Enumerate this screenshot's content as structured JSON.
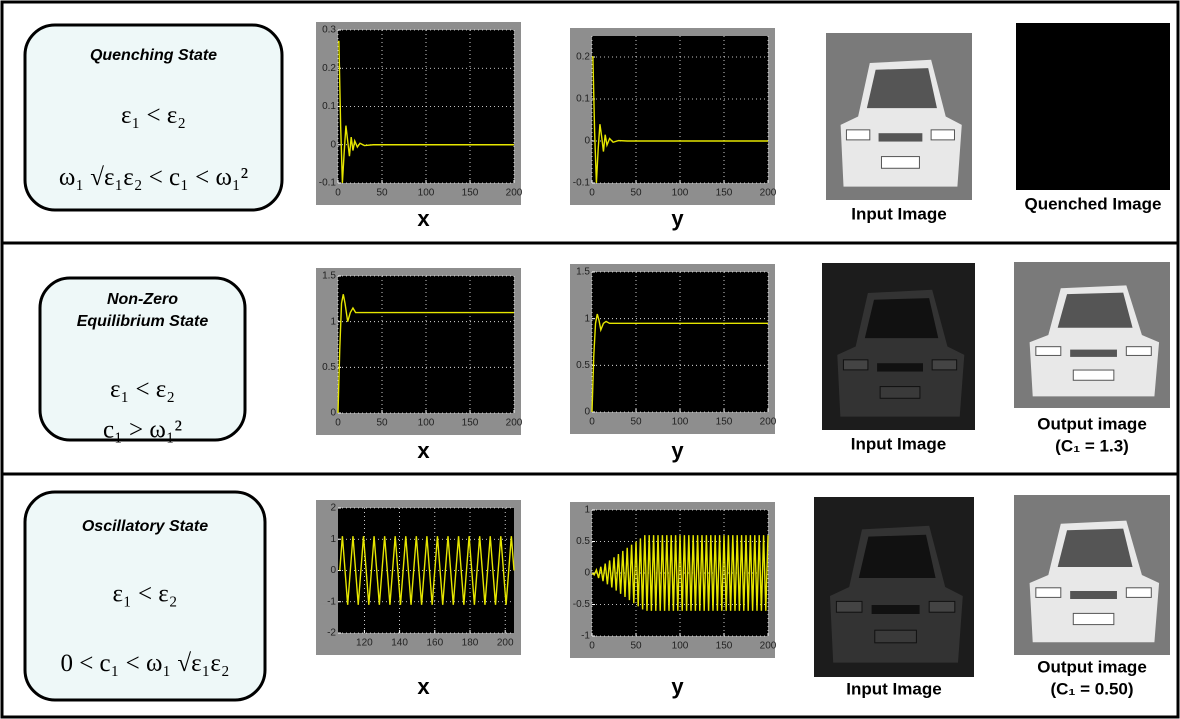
{
  "rows": [
    {
      "state": {
        "title": [
          "Quenching State"
        ],
        "conditions": [
          "ε₁ < ε₂",
          "ω₁ √ε₁ε₂ < c₁ < ω₁²"
        ]
      },
      "plots": [
        {
          "type": "line",
          "xlabel": "x",
          "color": "#e6e600",
          "grid": true,
          "xlim": [
            0,
            200
          ],
          "ylim": [
            -0.1,
            0.3
          ],
          "xticks": [
            0,
            50,
            100,
            150,
            200
          ],
          "yticks": [
            -0.1,
            0,
            0.1,
            0.2,
            0.3
          ],
          "x": [
            0,
            1,
            3,
            5,
            7,
            9,
            11,
            13,
            15,
            17,
            19,
            22,
            25,
            30,
            40,
            200
          ],
          "y": [
            0.27,
            0.27,
            0.05,
            -0.1,
            -0.02,
            0.05,
            0.01,
            -0.03,
            0.02,
            -0.015,
            0.01,
            -0.006,
            0.004,
            -0.002,
            0,
            0
          ]
        },
        {
          "type": "line",
          "xlabel": "y",
          "color": "#e6e600",
          "grid": true,
          "xlim": [
            0,
            200
          ],
          "ylim": [
            -0.1,
            0.25
          ],
          "xticks": [
            0,
            50,
            100,
            150,
            200
          ],
          "yticks": [
            -0.1,
            0,
            0.1,
            0.2
          ],
          "x": [
            0,
            1,
            3,
            5,
            7,
            9,
            11,
            13,
            15,
            17,
            20,
            24,
            30,
            40,
            200
          ],
          "y": [
            0.2,
            0.2,
            0.02,
            -0.1,
            -0.02,
            0.04,
            0.01,
            -0.025,
            0.015,
            -0.01,
            0.006,
            -0.003,
            0.001,
            0,
            0
          ]
        }
      ],
      "input_image": {
        "caption": "Input Image"
      },
      "output_image": {
        "caption": [
          "Quenched Image"
        ]
      }
    },
    {
      "state": {
        "title": [
          "Non-Zero",
          "Equilibrium State"
        ],
        "conditions": [
          "ε₁ < ε₂",
          "c₁ > ω₁²"
        ]
      },
      "plots": [
        {
          "type": "line",
          "xlabel": "x",
          "color": "#e6e600",
          "grid": true,
          "xlim": [
            0,
            200
          ],
          "ylim": [
            0,
            1.5
          ],
          "xticks": [
            0,
            50,
            100,
            150,
            200
          ],
          "yticks": [
            0,
            0.5,
            1,
            1.5
          ],
          "x": [
            0,
            2,
            4,
            6,
            8,
            11,
            14,
            17,
            20,
            25,
            200
          ],
          "y": [
            0,
            0.7,
            1.2,
            1.3,
            1.2,
            1.0,
            1.1,
            1.15,
            1.1,
            1.1,
            1.1
          ]
        },
        {
          "type": "line",
          "xlabel": "y",
          "color": "#e6e600",
          "grid": true,
          "xlim": [
            0,
            200
          ],
          "ylim": [
            0,
            1.5
          ],
          "xticks": [
            0,
            50,
            100,
            150,
            200
          ],
          "yticks": [
            0,
            0.5,
            1,
            1.5
          ],
          "x": [
            0,
            2,
            4,
            6,
            8,
            10,
            13,
            16,
            20,
            200
          ],
          "y": [
            0,
            0.6,
            0.95,
            1.05,
            0.98,
            0.88,
            0.95,
            0.97,
            0.95,
            0.95
          ]
        }
      ],
      "input_image": {
        "caption": "Input Image"
      },
      "output_image": {
        "caption": [
          "Output image",
          "(C₁ = 1.3)"
        ]
      }
    },
    {
      "state": {
        "title": [
          "Oscillatory State"
        ],
        "conditions": [
          "ε₁ < ε₂",
          "0 < c₁ < ω₁ √ε₁ε₂"
        ]
      },
      "plots": [
        {
          "type": "line",
          "xlabel": "x",
          "color": "#e6e600",
          "grid": true,
          "xlim": [
            105,
            205
          ],
          "ylim": [
            -2,
            2
          ],
          "xticks": [
            120,
            140,
            160,
            180,
            200
          ],
          "yticks": [
            -2,
            -1,
            0,
            1,
            2
          ],
          "x": [
            106,
            107.5,
            109,
            110.5,
            112,
            113.5,
            115,
            116.5,
            118,
            119.5,
            121,
            122.5,
            124,
            125.5,
            127,
            128.5,
            130,
            131.5,
            133,
            134.5,
            136,
            137.5,
            139,
            140.5,
            142,
            143.5,
            145,
            146.5,
            148,
            149.5,
            151,
            152.5,
            154,
            155.5,
            157,
            158.5,
            160,
            161.5,
            163,
            164.5,
            166,
            167.5,
            169,
            170.5,
            172,
            173.5,
            175,
            176.5,
            178,
            179.5,
            181,
            182.5,
            184,
            185.5,
            187,
            188.5,
            190,
            191.5,
            193,
            194.5,
            196,
            197.5,
            199,
            200.5,
            202,
            203.5,
            205
          ],
          "y": [
            0,
            1.1,
            0,
            -1.1,
            0,
            1.1,
            0,
            -1.1,
            0,
            1.1,
            0,
            -1.1,
            0,
            1.1,
            0,
            -1.1,
            0,
            1.1,
            0,
            -1.1,
            0,
            1.1,
            0,
            -1.1,
            0,
            1.1,
            0,
            -1.1,
            0,
            1.1,
            0,
            -1.1,
            0,
            1.1,
            0,
            -1.1,
            0,
            1.1,
            0,
            -1.1,
            0,
            1.1,
            0,
            -1.1,
            0,
            1.1,
            0,
            -1.1,
            0,
            1.1,
            0,
            -1.1,
            0,
            1.1,
            0,
            -1.1,
            0,
            1.1,
            0,
            -1.1,
            0,
            1.1,
            0,
            -1.1,
            0,
            1.1,
            0
          ]
        },
        {
          "type": "line",
          "xlabel": "y",
          "color": "#e6e600",
          "grid": true,
          "xlim": [
            0,
            200
          ],
          "ylim": [
            -1,
            1
          ],
          "xticks": [
            0,
            50,
            100,
            150,
            200
          ],
          "yticks": [
            -1,
            -0.5,
            0,
            0.5,
            1
          ],
          "x": [
            0,
            2.5,
            5,
            7.5,
            10,
            12.5,
            15,
            17.5,
            20,
            22.5,
            25,
            27.5,
            30,
            32.5,
            35,
            37.5,
            40,
            42.5,
            45,
            47.5,
            50,
            52.5,
            55,
            57.5,
            60,
            62.5,
            65,
            67.5,
            70,
            72.5,
            75,
            77.5,
            80,
            82.5,
            85,
            87.5,
            90,
            92.5,
            95,
            97.5,
            100,
            102.5,
            105,
            107.5,
            110,
            112.5,
            115,
            117.5,
            120,
            122.5,
            125,
            127.5,
            130,
            132.5,
            135,
            137.5,
            140,
            142.5,
            145,
            147.5,
            150,
            152.5,
            155,
            157.5,
            160,
            162.5,
            165,
            167.5,
            170,
            172.5,
            175,
            177.5,
            180,
            182.5,
            185,
            187.5,
            190,
            192.5,
            195,
            197.5,
            200
          ],
          "y": [
            0,
            -0.03,
            0.05,
            -0.08,
            0.1,
            -0.13,
            0.15,
            -0.18,
            0.2,
            -0.23,
            0.25,
            -0.28,
            0.3,
            -0.33,
            0.35,
            -0.38,
            0.4,
            -0.43,
            0.45,
            -0.48,
            0.5,
            -0.53,
            0.55,
            -0.58,
            0.6,
            -0.6,
            0.6,
            -0.6,
            0.6,
            -0.6,
            0.6,
            -0.6,
            0.6,
            -0.6,
            0.6,
            -0.6,
            0.6,
            -0.6,
            0.6,
            -0.6,
            0.6,
            -0.6,
            0.6,
            -0.6,
            0.6,
            -0.6,
            0.6,
            -0.6,
            0.6,
            -0.6,
            0.6,
            -0.6,
            0.6,
            -0.6,
            0.6,
            -0.6,
            0.6,
            -0.6,
            0.6,
            -0.6,
            0.6,
            -0.6,
            0.6,
            -0.6,
            0.6,
            -0.6,
            0.6,
            -0.6,
            0.6,
            -0.6,
            0.6,
            -0.6,
            0.6,
            -0.6,
            0.6,
            -0.6,
            0.6,
            -0.6,
            0.6,
            -0.6,
            0.6
          ]
        }
      ],
      "input_image": {
        "caption": "Input Image"
      },
      "output_image": {
        "caption": [
          "Output image",
          "(C₁ = 0.50)"
        ]
      }
    }
  ]
}
